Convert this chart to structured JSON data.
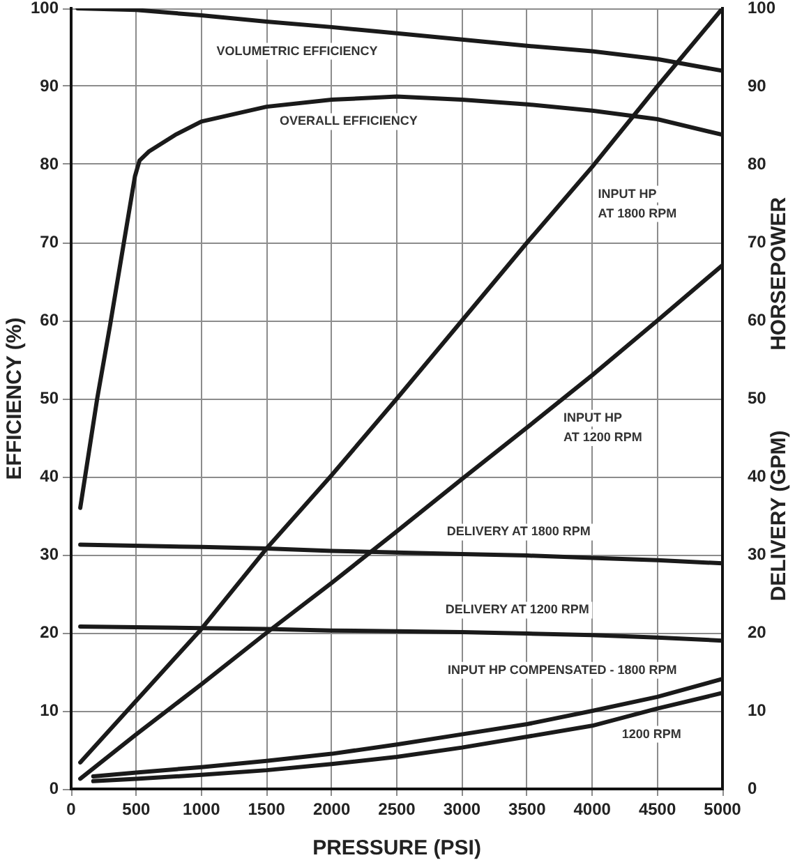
{
  "chart_data": {
    "type": "line",
    "xlabel": "PRESSURE (PSI)",
    "ylabel": "EFFICIENCY (%)",
    "y2label": "HORSEPOWER",
    "y3label": "DELIVERY (GPM)",
    "xlim": [
      0,
      5000
    ],
    "xticks": [
      0,
      500,
      1000,
      1500,
      2000,
      2500,
      3000,
      3500,
      4000,
      4500,
      5000
    ],
    "ylim": [
      0,
      100
    ],
    "yticks": [
      0,
      10,
      20,
      30,
      40,
      50,
      60,
      70,
      80,
      90,
      100
    ],
    "y2lim": [
      0,
      100
    ],
    "y2ticks": [
      0,
      10,
      20,
      30,
      40,
      50,
      60,
      70,
      80,
      90,
      100
    ],
    "grid": true,
    "series": [
      {
        "name": "VOLUMETRIC EFFICIENCY",
        "color": "#1a1a1a",
        "x": [
          50,
          500,
          1000,
          1500,
          2000,
          2500,
          3000,
          3500,
          4000,
          4500,
          5000
        ],
        "values": [
          100,
          99.8,
          99.1,
          98.3,
          97.6,
          96.8,
          96.0,
          95.2,
          94.5,
          93.5,
          92.0
        ]
      },
      {
        "name": "OVERALL EFFICIENCY",
        "color": "#1a1a1a",
        "x": [
          70,
          200,
          300,
          400,
          490,
          525,
          600,
          800,
          1000,
          1500,
          2000,
          2500,
          3000,
          3500,
          4000,
          4500,
          5000
        ],
        "values": [
          36,
          50,
          59.5,
          69.5,
          78.5,
          80.5,
          81.7,
          83.8,
          85.5,
          87.4,
          88.3,
          88.7,
          88.3,
          87.7,
          86.9,
          85.8,
          83.8
        ]
      },
      {
        "name": "INPUT HP\nAT 1800 RPM",
        "color": "#1a1a1a",
        "x": [
          70,
          1000,
          1500,
          2000,
          2500,
          3000,
          3500,
          4000,
          4500,
          5000
        ],
        "values": [
          3.4,
          20.5,
          30.8,
          40.2,
          50,
          60,
          70,
          79.7,
          90,
          100
        ]
      },
      {
        "name": "INPUT HP\nAT 1200 RPM",
        "color": "#1a1a1a",
        "x": [
          70,
          500,
          1000,
          1500,
          2000,
          2500,
          3000,
          3500,
          4000,
          4500,
          5000
        ],
        "values": [
          1.3,
          7,
          13.4,
          20,
          26.4,
          33,
          39.7,
          46.3,
          53,
          60,
          67.1
        ]
      },
      {
        "name": "DELIVERY AT 1800 RPM",
        "color": "#1a1a1a",
        "x": [
          70,
          1000,
          1500,
          2000,
          2500,
          3000,
          3500,
          4000,
          4500,
          5000
        ],
        "values": [
          31.3,
          31,
          30.8,
          30.5,
          30.3,
          30.1,
          29.9,
          29.6,
          29.3,
          28.9
        ]
      },
      {
        "name": "DELIVERY AT 1200 RPM",
        "color": "#1a1a1a",
        "x": [
          70,
          1000,
          1500,
          2000,
          2500,
          3000,
          3500,
          4000,
          4500,
          5000
        ],
        "values": [
          20.8,
          20.6,
          20.5,
          20.3,
          20.2,
          20.1,
          19.9,
          19.7,
          19.4,
          19.0
        ]
      },
      {
        "name": "INPUT HP COMPENSATED - 1800 RPM",
        "color": "#1a1a1a",
        "x": [
          170,
          500,
          1000,
          1500,
          2000,
          2500,
          3000,
          3500,
          4000,
          4500,
          5000
        ],
        "values": [
          1.6,
          2.1,
          2.8,
          3.6,
          4.5,
          5.7,
          7,
          8.3,
          10,
          11.8,
          14.1
        ]
      },
      {
        "name": "1200 RPM",
        "color": "#1a1a1a",
        "x": [
          170,
          500,
          1000,
          1500,
          2000,
          2500,
          3000,
          3500,
          4000,
          4500,
          5000
        ],
        "values": [
          1,
          1.3,
          1.8,
          2.4,
          3.2,
          4.1,
          5.3,
          6.7,
          8.1,
          10.3,
          12.3
        ]
      }
    ]
  }
}
